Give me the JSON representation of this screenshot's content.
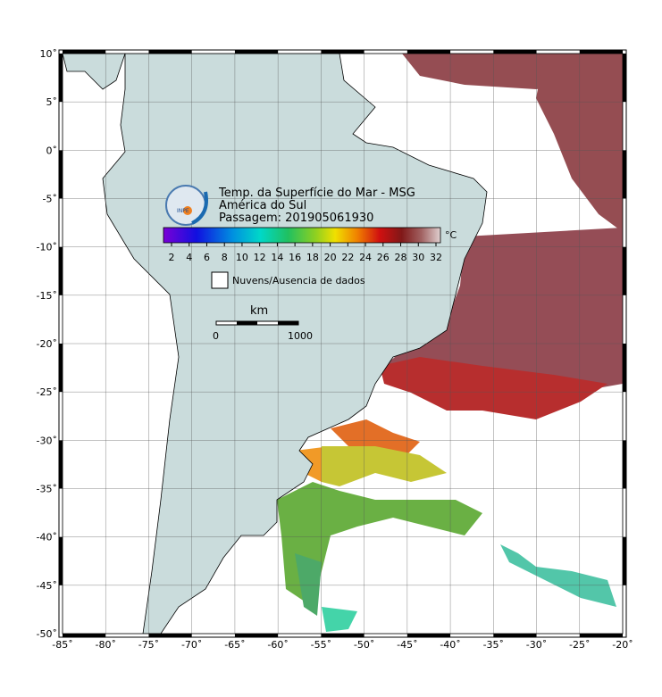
{
  "header": {
    "title": "Temp. da Superfície do Mar - MSG",
    "region": "América do Sul",
    "pass": "Passagem: 201905061930",
    "logo": "INPE"
  },
  "colorbar": {
    "unit": "°C",
    "ticks": [
      "2",
      "4",
      "6",
      "8",
      "10",
      "12",
      "14",
      "16",
      "18",
      "20",
      "22",
      "24",
      "26",
      "28",
      "30",
      "32"
    ]
  },
  "legend": {
    "label": "Nuvens/Ausencia de dados"
  },
  "scale": {
    "unit": "km",
    "start": "0",
    "end": "1000"
  },
  "axes": {
    "lon": [
      "-85˚",
      "-80˚",
      "-75˚",
      "-70˚",
      "-65˚",
      "-60˚",
      "-55˚",
      "-50˚",
      "-45˚",
      "-40˚",
      "-35˚",
      "-30˚",
      "-25˚",
      "-20˚"
    ],
    "lat": [
      "10˚",
      "5˚",
      "0˚",
      "-5˚",
      "-10˚",
      "-15˚",
      "-20˚",
      "-25˚",
      "-30˚",
      "-35˚",
      "-40˚",
      "-45˚",
      "-50˚"
    ]
  }
}
